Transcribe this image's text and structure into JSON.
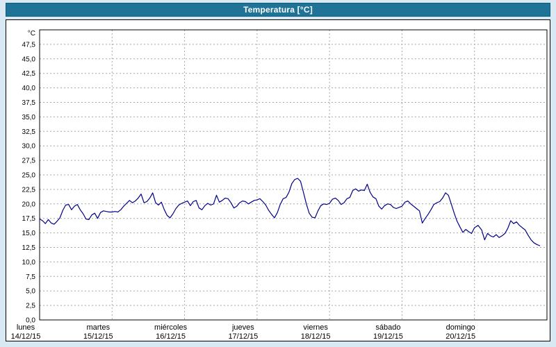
{
  "window": {
    "title": "Temperatura [°C]"
  },
  "colors": {
    "titlebar_bg": "#1f7397",
    "titlebar_text": "#ffffff",
    "page_bg": "#d9e9f4",
    "panel_bg": "#ffffff",
    "panel_border": "#000000",
    "grid": "#a6a6a6",
    "line": "#00008b",
    "tick_text": "#000000"
  },
  "chart_data": {
    "type": "line",
    "title": "Temperatura [°C]",
    "ylabel": "°C",
    "xlabel": "",
    "ylim": [
      0,
      50
    ],
    "xlim": [
      0,
      7
    ],
    "grid": true,
    "legend_position": "none",
    "ytick_values": [
      47.5,
      45.0,
      42.5,
      40.0,
      37.5,
      35.0,
      32.5,
      30.0,
      27.5,
      25.0,
      22.5,
      20.0,
      17.5,
      15.0,
      12.5,
      10.0,
      7.5,
      5.0,
      2.5,
      0.0
    ],
    "ytick_labels": [
      "47,5",
      "45,0",
      "42,5",
      "40,0",
      "37,5",
      "35,0",
      "32,5",
      "30,0",
      "27,5",
      "25,0",
      "22,5",
      "20,0",
      "17,5",
      "15,0",
      "12,5",
      "10,0",
      "7,5",
      "5,0",
      "2,5",
      "0,0"
    ],
    "days": [
      {
        "name": "lunes",
        "date": "14/12/15"
      },
      {
        "name": "martes",
        "date": "15/12/15"
      },
      {
        "name": "miércoles",
        "date": "16/12/15"
      },
      {
        "name": "jueves",
        "date": "17/12/15"
      },
      {
        "name": "viernes",
        "date": "18/12/15"
      },
      {
        "name": "sábado",
        "date": "19/12/15"
      },
      {
        "name": "domingo",
        "date": "20/12/15"
      }
    ],
    "series": [
      {
        "name": "Temperatura",
        "color": "#00008b",
        "points": [
          [
            0.0,
            17.4
          ],
          [
            0.04,
            17.1
          ],
          [
            0.08,
            16.6
          ],
          [
            0.12,
            17.3
          ],
          [
            0.16,
            16.7
          ],
          [
            0.2,
            16.5
          ],
          [
            0.24,
            17.0
          ],
          [
            0.28,
            17.6
          ],
          [
            0.32,
            18.9
          ],
          [
            0.36,
            19.8
          ],
          [
            0.4,
            19.9
          ],
          [
            0.44,
            19.0
          ],
          [
            0.48,
            19.6
          ],
          [
            0.52,
            19.9
          ],
          [
            0.56,
            19.0
          ],
          [
            0.6,
            18.3
          ],
          [
            0.64,
            17.4
          ],
          [
            0.68,
            17.3
          ],
          [
            0.72,
            18.1
          ],
          [
            0.76,
            18.4
          ],
          [
            0.8,
            17.5
          ],
          [
            0.84,
            18.5
          ],
          [
            0.88,
            18.8
          ],
          [
            0.92,
            18.7
          ],
          [
            0.96,
            18.6
          ],
          [
            1.0,
            18.6
          ],
          [
            1.04,
            18.7
          ],
          [
            1.08,
            18.6
          ],
          [
            1.12,
            19.0
          ],
          [
            1.16,
            19.6
          ],
          [
            1.2,
            20.1
          ],
          [
            1.24,
            20.6
          ],
          [
            1.28,
            20.2
          ],
          [
            1.32,
            20.5
          ],
          [
            1.36,
            21.0
          ],
          [
            1.4,
            21.7
          ],
          [
            1.44,
            20.2
          ],
          [
            1.48,
            20.4
          ],
          [
            1.52,
            21.0
          ],
          [
            1.56,
            21.9
          ],
          [
            1.6,
            20.2
          ],
          [
            1.64,
            19.8
          ],
          [
            1.68,
            20.3
          ],
          [
            1.72,
            19.0
          ],
          [
            1.76,
            18.0
          ],
          [
            1.8,
            17.6
          ],
          [
            1.84,
            18.3
          ],
          [
            1.88,
            19.2
          ],
          [
            1.92,
            19.8
          ],
          [
            1.96,
            20.1
          ],
          [
            2.0,
            20.3
          ],
          [
            2.04,
            20.5
          ],
          [
            2.08,
            19.7
          ],
          [
            2.12,
            20.4
          ],
          [
            2.16,
            20.6
          ],
          [
            2.2,
            19.3
          ],
          [
            2.24,
            19.0
          ],
          [
            2.28,
            19.7
          ],
          [
            2.32,
            20.1
          ],
          [
            2.36,
            19.8
          ],
          [
            2.4,
            20.0
          ],
          [
            2.44,
            21.5
          ],
          [
            2.48,
            20.3
          ],
          [
            2.52,
            20.6
          ],
          [
            2.56,
            21.0
          ],
          [
            2.6,
            20.9
          ],
          [
            2.64,
            20.2
          ],
          [
            2.68,
            19.3
          ],
          [
            2.72,
            19.6
          ],
          [
            2.76,
            20.2
          ],
          [
            2.8,
            20.5
          ],
          [
            2.84,
            20.4
          ],
          [
            2.88,
            20.0
          ],
          [
            2.92,
            20.3
          ],
          [
            2.96,
            20.6
          ],
          [
            3.0,
            20.7
          ],
          [
            3.04,
            20.9
          ],
          [
            3.08,
            20.4
          ],
          [
            3.12,
            19.8
          ],
          [
            3.16,
            18.9
          ],
          [
            3.2,
            18.2
          ],
          [
            3.24,
            17.6
          ],
          [
            3.28,
            18.5
          ],
          [
            3.32,
            19.9
          ],
          [
            3.36,
            20.9
          ],
          [
            3.4,
            21.1
          ],
          [
            3.44,
            22.0
          ],
          [
            3.48,
            23.5
          ],
          [
            3.52,
            24.2
          ],
          [
            3.56,
            24.4
          ],
          [
            3.6,
            23.9
          ],
          [
            3.64,
            22.0
          ],
          [
            3.68,
            20.0
          ],
          [
            3.72,
            18.4
          ],
          [
            3.76,
            17.7
          ],
          [
            3.8,
            17.6
          ],
          [
            3.84,
            18.8
          ],
          [
            3.88,
            19.7
          ],
          [
            3.92,
            20.0
          ],
          [
            3.96,
            19.9
          ],
          [
            4.0,
            20.1
          ],
          [
            4.04,
            20.8
          ],
          [
            4.08,
            21.0
          ],
          [
            4.12,
            20.6
          ],
          [
            4.16,
            19.9
          ],
          [
            4.2,
            20.2
          ],
          [
            4.24,
            20.9
          ],
          [
            4.28,
            21.1
          ],
          [
            4.32,
            22.3
          ],
          [
            4.36,
            22.6
          ],
          [
            4.4,
            22.2
          ],
          [
            4.44,
            22.4
          ],
          [
            4.48,
            22.3
          ],
          [
            4.52,
            23.4
          ],
          [
            4.56,
            22.0
          ],
          [
            4.6,
            21.2
          ],
          [
            4.64,
            20.9
          ],
          [
            4.68,
            19.6
          ],
          [
            4.72,
            19.1
          ],
          [
            4.76,
            19.7
          ],
          [
            4.8,
            20.0
          ],
          [
            4.84,
            19.9
          ],
          [
            4.88,
            19.4
          ],
          [
            4.92,
            19.2
          ],
          [
            4.96,
            19.4
          ],
          [
            5.0,
            19.6
          ],
          [
            5.04,
            20.3
          ],
          [
            5.08,
            20.5
          ],
          [
            5.12,
            20.0
          ],
          [
            5.16,
            19.6
          ],
          [
            5.2,
            19.2
          ],
          [
            5.24,
            18.8
          ],
          [
            5.28,
            16.7
          ],
          [
            5.32,
            17.5
          ],
          [
            5.36,
            18.2
          ],
          [
            5.4,
            19.0
          ],
          [
            5.44,
            19.9
          ],
          [
            5.48,
            20.2
          ],
          [
            5.52,
            20.4
          ],
          [
            5.56,
            21.0
          ],
          [
            5.6,
            21.9
          ],
          [
            5.64,
            21.5
          ],
          [
            5.68,
            20.0
          ],
          [
            5.72,
            18.4
          ],
          [
            5.76,
            17.0
          ],
          [
            5.8,
            16.0
          ],
          [
            5.84,
            15.1
          ],
          [
            5.88,
            15.6
          ],
          [
            5.92,
            15.2
          ],
          [
            5.96,
            14.9
          ],
          [
            6.0,
            15.9
          ],
          [
            6.05,
            16.3
          ],
          [
            6.1,
            15.5
          ],
          [
            6.14,
            13.8
          ],
          [
            6.18,
            14.9
          ],
          [
            6.22,
            14.5
          ],
          [
            6.26,
            14.3
          ],
          [
            6.3,
            14.7
          ],
          [
            6.34,
            14.2
          ],
          [
            6.38,
            14.5
          ],
          [
            6.42,
            14.9
          ],
          [
            6.46,
            15.8
          ],
          [
            6.5,
            17.1
          ],
          [
            6.54,
            16.6
          ],
          [
            6.58,
            16.9
          ],
          [
            6.62,
            16.3
          ],
          [
            6.66,
            15.9
          ],
          [
            6.7,
            15.5
          ],
          [
            6.74,
            14.6
          ],
          [
            6.78,
            13.8
          ],
          [
            6.82,
            13.3
          ],
          [
            6.86,
            13.0
          ],
          [
            6.9,
            12.8
          ]
        ]
      }
    ]
  }
}
